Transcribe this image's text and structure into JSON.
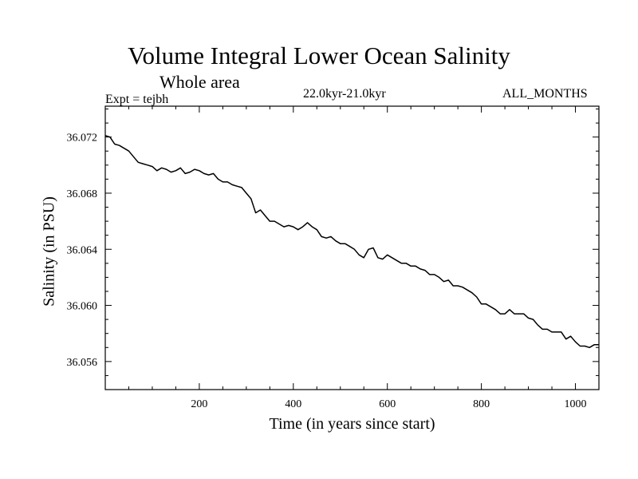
{
  "chart_data": {
    "type": "line",
    "title": "Volume Integral Lower Ocean Salinity",
    "subtitle": "Whole area",
    "experiment": "Expt = tejbh",
    "period": "22.0kyr-21.0kyr",
    "months": "ALL_MONTHS",
    "xlabel": "Time (in years since start)",
    "ylabel": "Salinity (in PSU)",
    "xlim": [
      0,
      1050
    ],
    "ylim": [
      36.054,
      36.0742
    ],
    "x_ticks": [
      200,
      400,
      600,
      800,
      1000
    ],
    "x_tick_labels": [
      "200",
      "400",
      "600",
      "800",
      "1000"
    ],
    "y_ticks": [
      36.056,
      36.06,
      36.064,
      36.068,
      36.072
    ],
    "y_tick_labels": [
      "36.056",
      "36.060",
      "36.064",
      "36.068",
      "36.072"
    ],
    "series": [
      {
        "name": "Salinity",
        "color": "#000000",
        "x": [
          0,
          10,
          20,
          30,
          40,
          50,
          60,
          70,
          80,
          90,
          100,
          110,
          120,
          130,
          140,
          150,
          160,
          170,
          180,
          190,
          200,
          210,
          220,
          230,
          240,
          250,
          260,
          270,
          280,
          290,
          300,
          310,
          315,
          320,
          330,
          340,
          350,
          360,
          370,
          380,
          390,
          400,
          410,
          420,
          430,
          440,
          450,
          460,
          470,
          480,
          490,
          500,
          510,
          520,
          530,
          540,
          550,
          560,
          570,
          580,
          590,
          600,
          610,
          620,
          630,
          640,
          650,
          660,
          670,
          680,
          690,
          700,
          710,
          720,
          730,
          740,
          750,
          760,
          770,
          780,
          790,
          800,
          810,
          820,
          830,
          840,
          850,
          860,
          870,
          880,
          890,
          900,
          910,
          920,
          930,
          940,
          950,
          960,
          970,
          980,
          990,
          1000,
          1010,
          1020,
          1030,
          1040,
          1050
        ],
        "values": [
          36.0721,
          36.072,
          36.0715,
          36.0714,
          36.0712,
          36.071,
          36.0706,
          36.0702,
          36.0701,
          36.07,
          36.0699,
          36.0696,
          36.0698,
          36.0697,
          36.0695,
          36.0696,
          36.0698,
          36.0694,
          36.0695,
          36.0697,
          36.0696,
          36.0694,
          36.0693,
          36.0694,
          36.069,
          36.0688,
          36.0688,
          36.0686,
          36.0685,
          36.0684,
          36.068,
          36.0676,
          36.0671,
          36.0666,
          36.0668,
          36.0664,
          36.066,
          36.066,
          36.0658,
          36.0656,
          36.0657,
          36.0656,
          36.0654,
          36.0656,
          36.0659,
          36.0656,
          36.0654,
          36.0649,
          36.0648,
          36.0649,
          36.0646,
          36.0644,
          36.0644,
          36.0642,
          36.064,
          36.0636,
          36.0634,
          36.064,
          36.0641,
          36.0634,
          36.0633,
          36.0636,
          36.0634,
          36.0632,
          36.063,
          36.063,
          36.0628,
          36.0628,
          36.0626,
          36.0625,
          36.0622,
          36.0622,
          36.062,
          36.0617,
          36.0618,
          36.0614,
          36.0614,
          36.0613,
          36.0611,
          36.0609,
          36.0606,
          36.0601,
          36.0601,
          36.0599,
          36.0597,
          36.0594,
          36.0594,
          36.0597,
          36.0594,
          36.0594,
          36.0594,
          36.0591,
          36.059,
          36.0586,
          36.0583,
          36.0583,
          36.0581,
          36.0581,
          36.0581,
          36.0576,
          36.0578,
          36.0574,
          36.0571,
          36.0571,
          36.057,
          36.0572,
          36.0572
        ]
      }
    ]
  }
}
